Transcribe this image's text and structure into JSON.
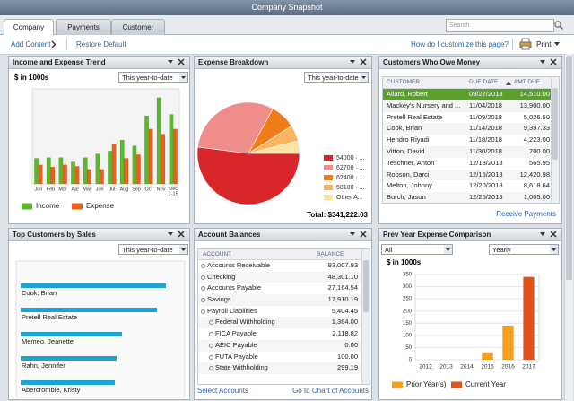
{
  "window": {
    "title": "Company Snapshot",
    "tabs": [
      "Company",
      "Payments",
      "Customer"
    ],
    "search": "Search"
  },
  "toolbar": {
    "add_content": "Add Content",
    "restore_default": "Restore Default",
    "help": "How do I customize this page?",
    "print": "Print"
  },
  "chart_data": [
    {
      "type": "bar",
      "title": "Income and Expense Trend",
      "filter": "This year-to-date",
      "subtitle": "$ in 1000s",
      "categories": [
        "Jan",
        "Feb",
        "Mar",
        "Apr",
        "May",
        "Jun",
        "Jul",
        "Aug",
        "Sep",
        "Oct",
        "Nov",
        "Dec 1-15"
      ],
      "series": [
        {
          "name": "Income",
          "color": "#5cb82e",
          "values": [
            35,
            36,
            36,
            30,
            36,
            41,
            45,
            60,
            52,
            93,
            118,
            95
          ]
        },
        {
          "name": "Expense",
          "color": "#e8601c",
          "values": [
            26,
            23,
            26,
            24,
            20,
            20,
            55,
            35,
            40,
            75,
            68,
            75
          ]
        }
      ],
      "ylim": [
        0,
        130
      ]
    },
    {
      "type": "pie",
      "title": "Expense Breakdown",
      "filter": "This year-to-date",
      "categories": [
        "54000 · ...",
        "62700 · ...",
        "62400 · ...",
        "50100 · ...",
        "Other A..."
      ],
      "values": [
        52,
        31,
        8,
        5,
        4
      ],
      "colors": [
        "#d9262b",
        "#ef8d8a",
        "#f07d1a",
        "#f9b55f",
        "#fbe3a6"
      ],
      "total": "Total: $341,222.03"
    },
    {
      "type": "hbar",
      "title": "Top Customers by Sales",
      "filter": "This year-to-date",
      "categories": [
        "Cook, Brian",
        "Pretell Real Estate",
        "Memeo, Jeanette",
        "Rahn, Jennifer",
        "Abercrombie, Kristy"
      ],
      "values": [
        162,
        152,
        113,
        107,
        105
      ],
      "color": "#1ea3d6",
      "xlim": [
        0,
        180
      ]
    },
    {
      "type": "bar",
      "title": "Prev Year Expense Comparison",
      "filters": [
        "All",
        "Yearly"
      ],
      "subtitle": "$ in 1000s",
      "categories": [
        "2012",
        "2013",
        "2014",
        "2015",
        "2016",
        "2017"
      ],
      "series": [
        {
          "name": "Prior Year(s)",
          "color": "#f5a01a",
          "values": [
            null,
            null,
            null,
            30,
            140,
            null
          ]
        },
        {
          "name": "Current Year",
          "color": "#e2531b",
          "values": [
            null,
            null,
            null,
            null,
            null,
            340
          ]
        }
      ],
      "ylim": [
        0,
        350
      ],
      "yticks": [
        0,
        50,
        100,
        150,
        200,
        250,
        300,
        350
      ],
      "grid": true
    }
  ],
  "customers_owe_money": {
    "title": "Customers Who Owe Money",
    "columns": [
      "CUSTOMER",
      "DUE DATE",
      "AMT DUE"
    ],
    "rows": [
      [
        "Allard, Robert",
        "09/27/2018",
        "14,510.00"
      ],
      [
        "Mackey's Nursery and ...",
        "11/04/2018",
        "13,900.00"
      ],
      [
        "Pretell Real Estate",
        "11/09/2018",
        "5,026.50"
      ],
      [
        "Cook, Brian",
        "11/14/2018",
        "9,397.33"
      ],
      [
        "Hendro Riyadi",
        "11/18/2018",
        "4,223.00"
      ],
      [
        "Vitton, David",
        "11/30/2018",
        "700.00"
      ],
      [
        "Teschner, Anton",
        "12/13/2018",
        "565.95"
      ],
      [
        "Robson, Darci",
        "12/15/2018",
        "12,420.98"
      ],
      [
        "Melton, Johnny",
        "12/20/2018",
        "8,618.64"
      ],
      [
        "Burch, Jason",
        "12/25/2018",
        "1,005.00"
      ]
    ],
    "link": "Receive Payments"
  },
  "account_balances": {
    "title": "Account Balances",
    "columns": [
      "ACCOUNT",
      "BALANCE"
    ],
    "rows": [
      {
        "account": "Accounts Receivable",
        "balance": "93,007.93"
      },
      {
        "account": "Checking",
        "balance": "48,301.10"
      },
      {
        "account": "Accounts Payable",
        "balance": "27,164.54"
      },
      {
        "account": "Savings",
        "balance": "17,910.19"
      },
      {
        "account": "Payroll Liabilities",
        "balance": "5,404.45",
        "sub": [
          {
            "account": "Federal Withholding",
            "balance": "1,364.00"
          },
          {
            "account": "FICA Payable",
            "balance": "2,118.82"
          },
          {
            "account": "AEIC Payable",
            "balance": "0.00"
          },
          {
            "account": "FUTA Payable",
            "balance": "100.00"
          },
          {
            "account": "State Withholding",
            "balance": "299.19"
          }
        ]
      }
    ],
    "links": [
      "Select Accounts",
      "Go to Chart of Accounts"
    ]
  }
}
